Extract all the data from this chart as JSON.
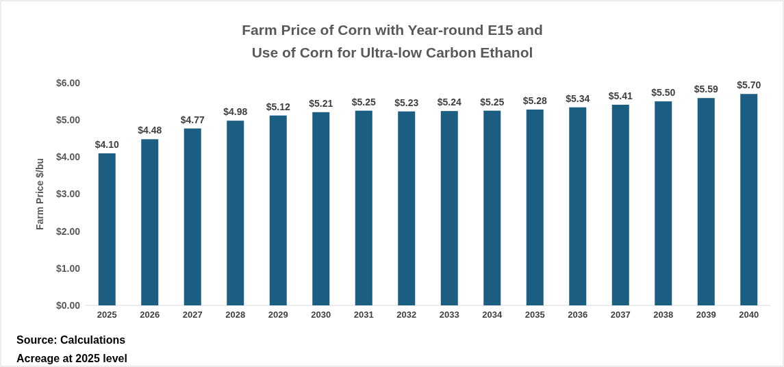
{
  "chart_data": {
    "type": "bar",
    "title": "Farm Price of Corn with Year-round E15 and\nUse of Corn for Ultra-low Carbon Ethanol",
    "ylabel": "Farm Price $/bu",
    "categories": [
      "2025",
      "2026",
      "2027",
      "2028",
      "2029",
      "2030",
      "2031",
      "2032",
      "2033",
      "2034",
      "2035",
      "2036",
      "2037",
      "2038",
      "2039",
      "2040"
    ],
    "values": [
      4.1,
      4.48,
      4.77,
      4.98,
      5.12,
      5.21,
      5.25,
      5.23,
      5.24,
      5.25,
      5.28,
      5.34,
      5.41,
      5.5,
      5.59,
      5.7
    ],
    "value_labels": [
      "$4.10",
      "$4.48",
      "$4.77",
      "$4.98",
      "$5.12",
      "$5.21",
      "$5.25",
      "$5.23",
      "$5.24",
      "$5.25",
      "$5.28",
      "$5.34",
      "$5.41",
      "$5.50",
      "$5.59",
      "$5.70"
    ],
    "color": "#1b5e82",
    "ylim": [
      0,
      6
    ],
    "yticks": [
      {
        "value": 0,
        "label": "$0.00"
      },
      {
        "value": 1,
        "label": "$1.00"
      },
      {
        "value": 2,
        "label": "$2.00"
      },
      {
        "value": 3,
        "label": "$3.00"
      },
      {
        "value": 4,
        "label": "$4.00"
      },
      {
        "value": 5,
        "label": "$5.00"
      },
      {
        "value": 6,
        "label": "$6.00"
      }
    ],
    "annotations": [
      "Source: Calculations",
      "Acreage at 2025 level"
    ]
  }
}
